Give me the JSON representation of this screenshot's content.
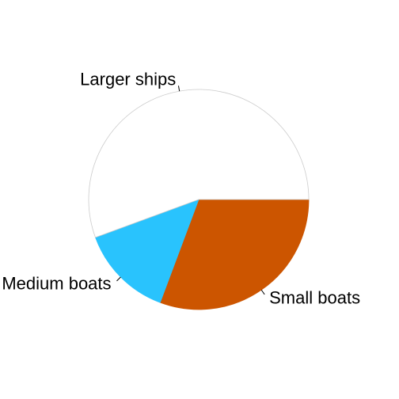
{
  "chart_data": {
    "type": "pie",
    "title": "",
    "categories": [
      "Small boats",
      "Medium boats",
      "Larger ships"
    ],
    "values": [
      30.7,
      13.7,
      55.6
    ],
    "colors": [
      "#cc5500",
      "#29c3fd",
      "#ffffff"
    ],
    "slice_outline_color": "#cccccc",
    "start_angle_deg": 0,
    "direction": "clockwise",
    "legend": "none",
    "labels_outside": true
  }
}
